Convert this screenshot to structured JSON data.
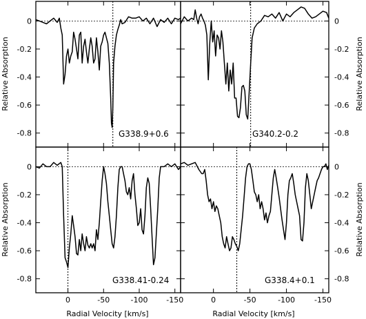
{
  "shared": {
    "ylabel": "Relative Absorption",
    "xlabel": "Radial Velocity [km/s]",
    "xticks": [
      0,
      -50,
      -100,
      -150
    ],
    "xtick_labels": [
      "0",
      "-50",
      "-100",
      "-150"
    ],
    "yticks": [
      0,
      -0.2,
      -0.4,
      -0.6,
      -0.8
    ],
    "ytick_labels": [
      "0",
      "-0.2",
      "-0.4",
      "-0.6",
      "-0.8"
    ],
    "xlim": [
      45,
      -158
    ],
    "ylim": [
      -0.9,
      0.14
    ]
  },
  "chart_data": [
    {
      "type": "line",
      "label": "G338.9+0.6",
      "vline_x": -63,
      "hline_y": 0,
      "series": [
        {
          "x": [
            45,
            40,
            35,
            30,
            25,
            20,
            15,
            12,
            10,
            8,
            6,
            4,
            2,
            0,
            -2,
            -4,
            -6,
            -8,
            -10,
            -12,
            -14,
            -16,
            -18,
            -20,
            -22,
            -24,
            -26,
            -28,
            -30,
            -32,
            -34,
            -36,
            -38,
            -40,
            -42,
            -44,
            -46,
            -48,
            -50,
            -52,
            -54,
            -56,
            -58,
            -60,
            -61,
            -62,
            -63,
            -64,
            -66,
            -68,
            -70,
            -72,
            -74,
            -76,
            -80,
            -85,
            -90,
            -95,
            -100,
            -105,
            -110,
            -115,
            -120,
            -125,
            -130,
            -135,
            -140,
            -145,
            -150,
            -155,
            -158
          ],
          "y": [
            0.01,
            0.0,
            -0.01,
            -0.02,
            0.0,
            0.02,
            -0.01,
            0.02,
            -0.05,
            -0.1,
            -0.45,
            -0.38,
            -0.25,
            -0.2,
            -0.3,
            -0.25,
            -0.22,
            -0.08,
            -0.13,
            -0.2,
            -0.27,
            -0.1,
            -0.08,
            -0.3,
            -0.18,
            -0.13,
            -0.22,
            -0.3,
            -0.2,
            -0.12,
            -0.18,
            -0.3,
            -0.27,
            -0.12,
            -0.22,
            -0.35,
            -0.18,
            -0.15,
            -0.1,
            -0.08,
            -0.12,
            -0.16,
            -0.3,
            -0.55,
            -0.73,
            -0.76,
            -0.62,
            -0.3,
            -0.18,
            -0.1,
            -0.06,
            -0.03,
            0.01,
            -0.02,
            -0.01,
            0.03,
            0.02,
            0.02,
            0.03,
            0.0,
            0.02,
            -0.02,
            0.02,
            -0.04,
            0.01,
            -0.01,
            0.02,
            -0.02,
            0.02,
            0.01,
            0.02
          ]
        }
      ]
    },
    {
      "type": "line",
      "label": "G340.2-0.2",
      "vline_x": -51,
      "hline_y": 0,
      "series": [
        {
          "x": [
            45,
            40,
            35,
            30,
            27,
            25,
            23,
            21,
            19,
            17,
            15,
            13,
            11,
            9,
            7,
            5,
            3,
            1,
            -1,
            -3,
            -5,
            -7,
            -9,
            -11,
            -13,
            -15,
            -17,
            -19,
            -21,
            -23,
            -25,
            -27,
            -29,
            -31,
            -33,
            -35,
            -37,
            -39,
            -41,
            -43,
            -45,
            -47,
            -49,
            -51,
            -53,
            -56,
            -60,
            -65,
            -70,
            -75,
            -80,
            -85,
            -90,
            -95,
            -100,
            -105,
            -110,
            -115,
            -120,
            -125,
            -130,
            -135,
            -140,
            -145,
            -150,
            -155,
            -158
          ],
          "y": [
            -0.02,
            0.03,
            0.0,
            0.02,
            0.01,
            0.08,
            0.02,
            -0.02,
            0.03,
            0.05,
            0.02,
            0.0,
            -0.03,
            -0.1,
            -0.42,
            -0.15,
            0.0,
            -0.15,
            -0.07,
            -0.25,
            -0.1,
            -0.12,
            -0.2,
            -0.07,
            -0.15,
            -0.3,
            -0.45,
            -0.3,
            -0.5,
            -0.35,
            -0.45,
            -0.3,
            -0.55,
            -0.55,
            -0.68,
            -0.69,
            -0.62,
            -0.47,
            -0.46,
            -0.5,
            -0.67,
            -0.7,
            -0.5,
            -0.3,
            -0.12,
            -0.05,
            -0.02,
            0.0,
            0.04,
            0.03,
            0.05,
            0.02,
            0.06,
            0.0,
            0.05,
            0.03,
            0.06,
            0.08,
            0.1,
            0.09,
            0.05,
            0.02,
            0.03,
            0.05,
            0.07,
            0.06,
            0.02
          ]
        }
      ]
    },
    {
      "type": "line",
      "label": "G338.41-0.24",
      "vline_x": 0,
      "hline_y": 0,
      "series": [
        {
          "x": [
            45,
            40,
            35,
            30,
            25,
            20,
            15,
            10,
            8,
            6,
            4,
            2,
            0,
            -2,
            -4,
            -6,
            -8,
            -10,
            -12,
            -14,
            -16,
            -18,
            -20,
            -22,
            -24,
            -26,
            -28,
            -30,
            -32,
            -34,
            -36,
            -38,
            -40,
            -42,
            -44,
            -46,
            -48,
            -50,
            -52,
            -54,
            -56,
            -58,
            -60,
            -62,
            -64,
            -66,
            -68,
            -70,
            -72,
            -74,
            -76,
            -78,
            -80,
            -82,
            -84,
            -86,
            -88,
            -90,
            -92,
            -94,
            -96,
            -98,
            -100,
            -102,
            -104,
            -106,
            -108,
            -110,
            -112,
            -114,
            -116,
            -118,
            -120,
            -122,
            -124,
            -126,
            -128,
            -130,
            -135,
            -140,
            -145,
            -150,
            -155,
            -158
          ],
          "y": [
            0.0,
            -0.01,
            0.02,
            0.0,
            0.0,
            0.03,
            0.01,
            0.03,
            0.0,
            -0.35,
            -0.65,
            -0.68,
            -0.72,
            -0.58,
            -0.48,
            -0.35,
            -0.42,
            -0.5,
            -0.62,
            -0.63,
            -0.52,
            -0.6,
            -0.48,
            -0.55,
            -0.6,
            -0.5,
            -0.56,
            -0.58,
            -0.55,
            -0.58,
            -0.55,
            -0.6,
            -0.45,
            -0.52,
            -0.4,
            -0.25,
            -0.1,
            0.0,
            -0.05,
            -0.12,
            -0.25,
            -0.35,
            -0.45,
            -0.55,
            -0.58,
            -0.5,
            -0.35,
            -0.15,
            -0.02,
            0.0,
            0.0,
            -0.05,
            -0.1,
            -0.18,
            -0.2,
            -0.15,
            -0.23,
            -0.1,
            -0.05,
            -0.2,
            -0.3,
            -0.42,
            -0.4,
            -0.3,
            -0.45,
            -0.48,
            -0.35,
            -0.15,
            -0.08,
            -0.12,
            -0.3,
            -0.5,
            -0.7,
            -0.65,
            -0.48,
            -0.3,
            -0.08,
            0.0,
            0.0,
            0.02,
            0.0,
            0.02,
            -0.02,
            0.0
          ]
        }
      ]
    },
    {
      "type": "line",
      "label": "G338.4+0.1",
      "vline_x": -32,
      "hline_y": 0,
      "series": [
        {
          "x": [
            45,
            40,
            35,
            30,
            25,
            20,
            16,
            14,
            12,
            10,
            8,
            6,
            4,
            2,
            0,
            -2,
            -4,
            -6,
            -8,
            -10,
            -12,
            -14,
            -16,
            -18,
            -20,
            -22,
            -24,
            -26,
            -28,
            -30,
            -32,
            -34,
            -36,
            -38,
            -40,
            -42,
            -44,
            -46,
            -48,
            -50,
            -52,
            -54,
            -56,
            -58,
            -60,
            -62,
            -64,
            -66,
            -68,
            -70,
            -72,
            -74,
            -76,
            -78,
            -80,
            -82,
            -84,
            -86,
            -88,
            -90,
            -92,
            -94,
            -96,
            -98,
            -100,
            -102,
            -104,
            -106,
            -108,
            -110,
            -112,
            -114,
            -116,
            -118,
            -120,
            -122,
            -124,
            -126,
            -128,
            -130,
            -132,
            -134,
            -136,
            -138,
            -140,
            -142,
            -144,
            -146,
            -148,
            -150,
            -152,
            -154,
            -156,
            -158
          ],
          "y": [
            0.02,
            0.03,
            0.01,
            0.02,
            0.03,
            -0.02,
            -0.05,
            -0.05,
            -0.02,
            -0.1,
            -0.2,
            -0.25,
            -0.23,
            -0.3,
            -0.25,
            -0.32,
            -0.28,
            -0.3,
            -0.35,
            -0.4,
            -0.5,
            -0.55,
            -0.58,
            -0.5,
            -0.55,
            -0.6,
            -0.58,
            -0.5,
            -0.52,
            -0.55,
            -0.57,
            -0.6,
            -0.55,
            -0.45,
            -0.35,
            -0.22,
            -0.08,
            0.0,
            0.02,
            0.02,
            -0.02,
            -0.1,
            -0.18,
            -0.2,
            -0.25,
            -0.2,
            -0.3,
            -0.25,
            -0.3,
            -0.38,
            -0.33,
            -0.4,
            -0.35,
            -0.32,
            -0.2,
            -0.08,
            -0.02,
            -0.08,
            -0.15,
            -0.22,
            -0.3,
            -0.38,
            -0.45,
            -0.52,
            -0.4,
            -0.2,
            -0.1,
            -0.08,
            -0.05,
            -0.12,
            -0.2,
            -0.25,
            -0.3,
            -0.35,
            -0.52,
            -0.53,
            -0.4,
            -0.15,
            -0.05,
            -0.1,
            -0.2,
            -0.3,
            -0.25,
            -0.2,
            -0.15,
            -0.1,
            -0.08,
            -0.05,
            -0.02,
            0.0,
            0.0,
            0.02,
            -0.02,
            0.01
          ]
        }
      ]
    }
  ]
}
